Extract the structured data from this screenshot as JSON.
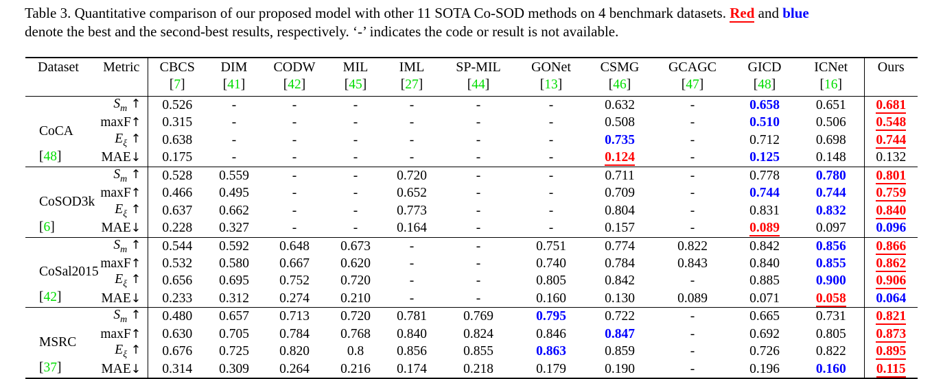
{
  "caption": {
    "line1_segments": [
      {
        "text": "Table 3. Quantitative comparison of our proposed model with other 11 SOTA Co-SOD methods on 4 benchmark datasets. ",
        "style": "plain"
      },
      {
        "text": "Red",
        "style": "best"
      },
      {
        "text": " and ",
        "style": "plain"
      },
      {
        "text": "blue",
        "style": "second"
      }
    ],
    "line2": "denote the best and the second-best results, respectively. ‘-’ indicates the code or result is not available."
  },
  "colors": {
    "best": "#ff0000",
    "second_best": "#0000ff",
    "citation": "#00dd00",
    "text": "#000000",
    "background": "#ffffff"
  },
  "table": {
    "header": {
      "dataset": "Dataset",
      "metric": "Metric",
      "ours": "Ours"
    },
    "methods": [
      {
        "name": "CBCS",
        "cite": "7"
      },
      {
        "name": "DIM",
        "cite": "41"
      },
      {
        "name": "CODW",
        "cite": "42"
      },
      {
        "name": "MIL",
        "cite": "45"
      },
      {
        "name": "IML",
        "cite": "27"
      },
      {
        "name": "SP-MIL",
        "cite": "44"
      },
      {
        "name": "GONet",
        "cite": "13"
      },
      {
        "name": "CSMG",
        "cite": "46"
      },
      {
        "name": "GCAGC",
        "cite": "47"
      },
      {
        "name": "GICD",
        "cite": "48"
      },
      {
        "name": "ICNet",
        "cite": "16"
      }
    ],
    "metrics": [
      {
        "key": "sm",
        "main": "S",
        "sub": "m",
        "italic": true,
        "arrow": "↑",
        "space_before_arrow": true
      },
      {
        "key": "maxf",
        "main": "maxF",
        "sub": "",
        "italic": false,
        "arrow": "↑",
        "space_before_arrow": false
      },
      {
        "key": "e",
        "main": "E",
        "sub": "ξ",
        "italic": true,
        "arrow": "↑",
        "space_before_arrow": true
      },
      {
        "key": "mae",
        "main": "MAE",
        "sub": "",
        "italic": false,
        "arrow": "↓",
        "space_before_arrow": false
      }
    ],
    "value_markers": {
      "r:": "best result (red, bold, underlined)",
      "b:": "second-best result (blue, bold)"
    },
    "datasets": [
      {
        "name": "CoCA",
        "cite": "48",
        "rows": [
          [
            "0.526",
            "-",
            "-",
            "-",
            "-",
            "-",
            "-",
            "0.632",
            "-",
            "b:0.658",
            "0.651",
            "r:0.681"
          ],
          [
            "0.315",
            "-",
            "-",
            "-",
            "-",
            "-",
            "-",
            "0.508",
            "-",
            "b:0.510",
            "0.506",
            "r:0.548"
          ],
          [
            "0.638",
            "-",
            "-",
            "-",
            "-",
            "-",
            "-",
            "b:0.735",
            "-",
            "0.712",
            "0.698",
            "r:0.744"
          ],
          [
            "0.175",
            "-",
            "-",
            "-",
            "-",
            "-",
            "-",
            "r:0.124",
            "-",
            "b:0.125",
            "0.148",
            "0.132"
          ]
        ]
      },
      {
        "name": "CoSOD3k",
        "cite": "6",
        "rows": [
          [
            "0.528",
            "0.559",
            "-",
            "-",
            "0.720",
            "-",
            "-",
            "0.711",
            "-",
            "0.778",
            "b:0.780",
            "r:0.801"
          ],
          [
            "0.466",
            "0.495",
            "-",
            "-",
            "0.652",
            "-",
            "-",
            "0.709",
            "-",
            "b:0.744",
            "b:0.744",
            "r:0.759"
          ],
          [
            "0.637",
            "0.662",
            "-",
            "-",
            "0.773",
            "-",
            "-",
            "0.804",
            "-",
            "0.831",
            "b:0.832",
            "r:0.840"
          ],
          [
            "0.228",
            "0.327",
            "-",
            "-",
            "0.164",
            "-",
            "-",
            "0.157",
            "-",
            "r:0.089",
            "0.097",
            "b:0.096"
          ]
        ]
      },
      {
        "name": "CoSal2015",
        "cite": "42",
        "rows": [
          [
            "0.544",
            "0.592",
            "0.648",
            "0.673",
            "-",
            "-",
            "0.751",
            "0.774",
            "0.822",
            "0.842",
            "b:0.856",
            "r:0.866"
          ],
          [
            "0.532",
            "0.580",
            "0.667",
            "0.620",
            "-",
            "-",
            "0.740",
            "0.784",
            "0.843",
            "0.840",
            "b:0.855",
            "r:0.862"
          ],
          [
            "0.656",
            "0.695",
            "0.752",
            "0.720",
            "-",
            "-",
            "0.805",
            "0.842",
            "-",
            "0.885",
            "b:0.900",
            "r:0.906"
          ],
          [
            "0.233",
            "0.312",
            "0.274",
            "0.210",
            "-",
            "-",
            "0.160",
            "0.130",
            "0.089",
            "0.071",
            "r:0.058",
            "b:0.064"
          ]
        ]
      },
      {
        "name": "MSRC",
        "cite": "37",
        "rows": [
          [
            "0.480",
            "0.657",
            "0.713",
            "0.720",
            "0.781",
            "0.769",
            "b:0.795",
            "0.722",
            "-",
            "0.665",
            "0.731",
            "r:0.821"
          ],
          [
            "0.630",
            "0.705",
            "0.784",
            "0.768",
            "0.840",
            "0.824",
            "0.846",
            "b:0.847",
            "-",
            "0.692",
            "0.805",
            "r:0.873"
          ],
          [
            "0.676",
            "0.725",
            "0.820",
            "0.8",
            "0.856",
            "0.855",
            "b:0.863",
            "0.859",
            "-",
            "0.726",
            "0.822",
            "r:0.895"
          ],
          [
            "0.314",
            "0.309",
            "0.264",
            "0.216",
            "0.174",
            "0.218",
            "0.179",
            "0.190",
            "-",
            "0.196",
            "b:0.160",
            "r:0.115"
          ]
        ]
      }
    ]
  }
}
